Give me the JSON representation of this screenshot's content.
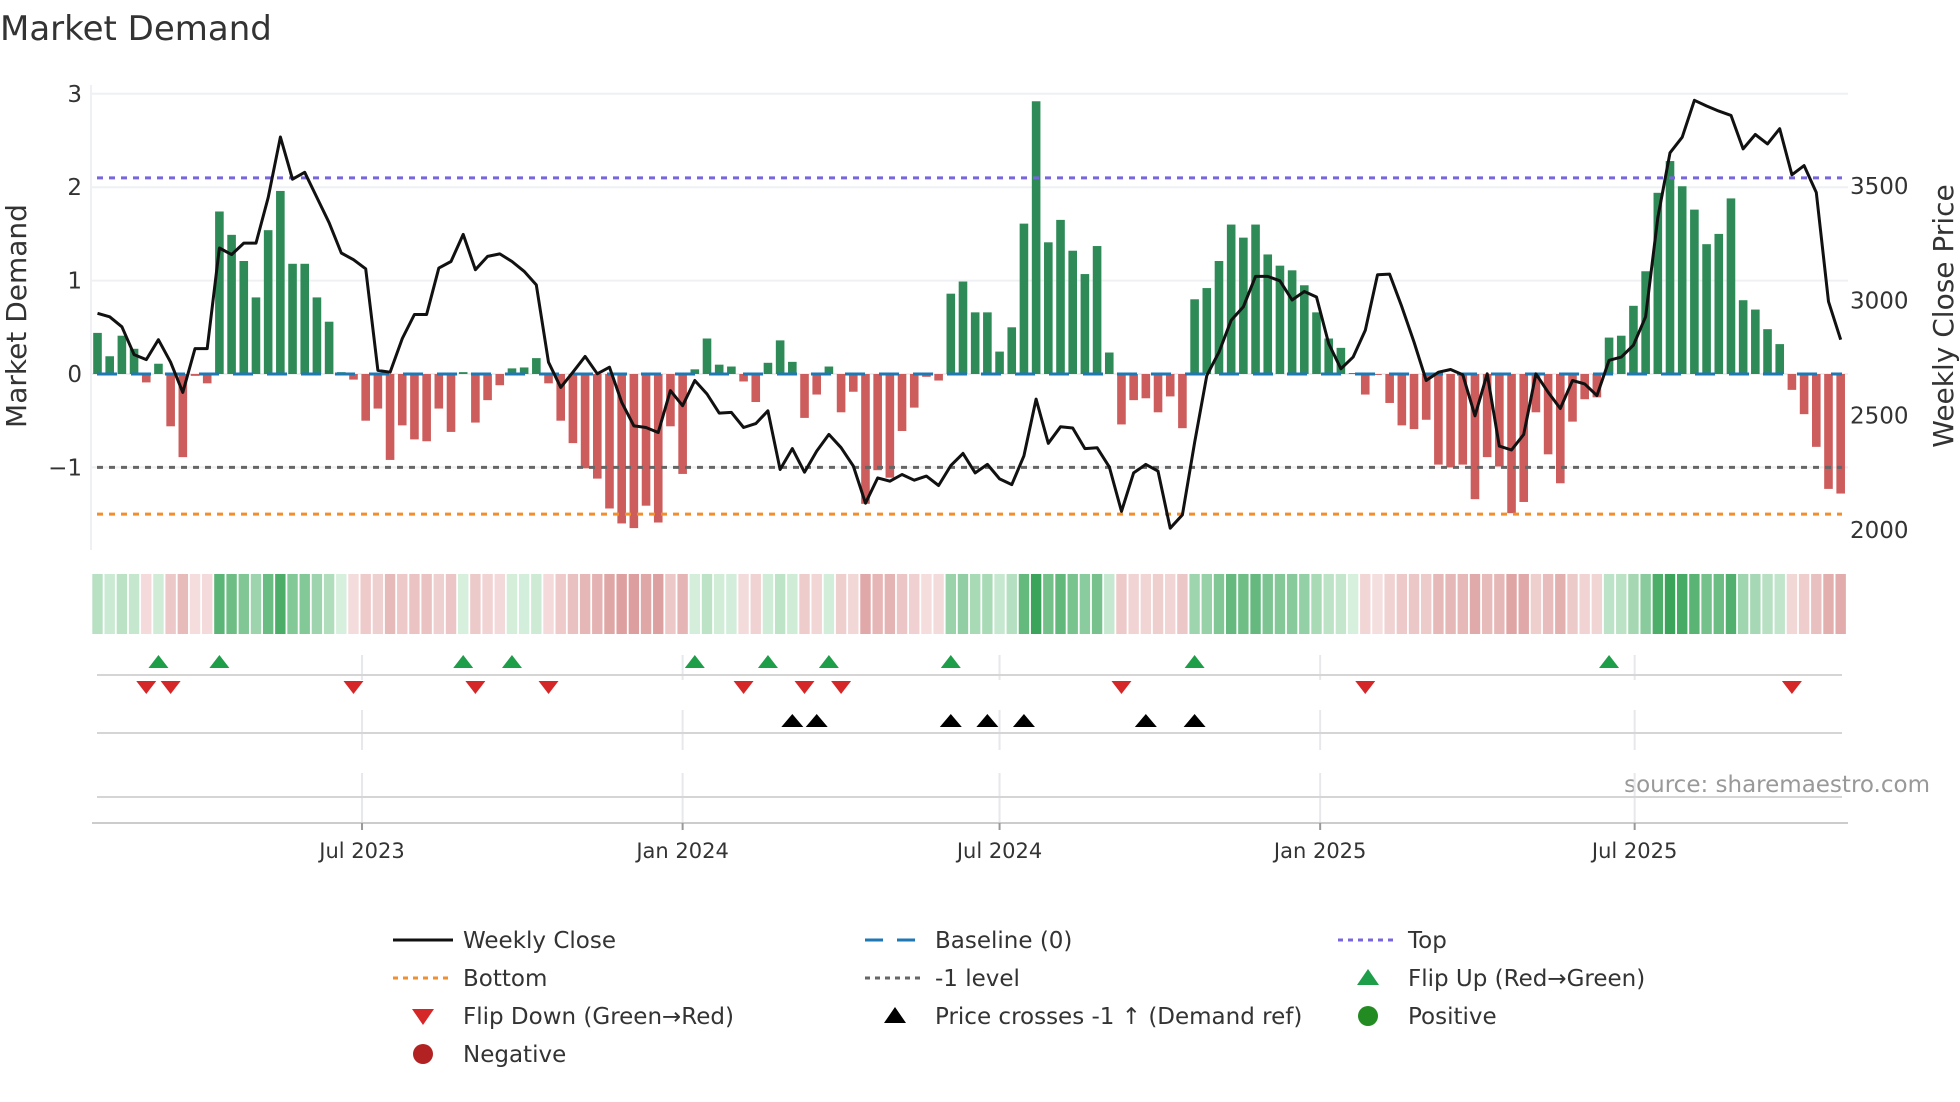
{
  "chart_data": {
    "type": "bar",
    "title": "Market Demand",
    "ylabel": "Market Demand",
    "y2label": "Weekly Close Price",
    "x_unit": "weeks",
    "x_start": "2023-01-30",
    "ylim": [
      -1.9,
      3.1
    ],
    "y2lim": [
      1950,
      3600
    ],
    "y_ticks": [
      {
        "value": 3,
        "label": "3"
      },
      {
        "value": 2,
        "label": "2"
      },
      {
        "value": 1,
        "label": "1"
      },
      {
        "value": 0,
        "label": "0"
      },
      {
        "value": -1,
        "label": "−1"
      }
    ],
    "y2_ticks": [
      {
        "value": 3500,
        "label": "3500"
      },
      {
        "value": 3000,
        "label": "3000"
      },
      {
        "value": 2500,
        "label": "2500"
      },
      {
        "value": 2000,
        "label": "2000"
      }
    ],
    "x_ticks": [
      {
        "week": 21.7,
        "label": "Jul 2023"
      },
      {
        "week": 48.0,
        "label": "Jan 2024"
      },
      {
        "week": 74.0,
        "label": "Jul 2024"
      },
      {
        "week": 100.3,
        "label": "Jan 2025"
      },
      {
        "week": 126.1,
        "label": "Jul 2025"
      }
    ],
    "levels": {
      "top": 2.1,
      "bottom": -1.5,
      "minus_one": -1,
      "baseline": 0
    },
    "demand": [
      0.44,
      0.19,
      0.41,
      0.27,
      -0.09,
      0.11,
      -0.56,
      -0.89,
      -0.02,
      -0.1,
      1.74,
      1.49,
      1.21,
      0.82,
      1.54,
      1.96,
      1.18,
      1.18,
      0.82,
      0.56,
      0.02,
      -0.06,
      -0.5,
      -0.37,
      -0.92,
      -0.55,
      -0.7,
      -0.72,
      -0.37,
      -0.62,
      0.02,
      -0.52,
      -0.28,
      -0.12,
      0.06,
      0.07,
      0.17,
      -0.1,
      -0.5,
      -0.74,
      -1.01,
      -1.12,
      -1.44,
      -1.6,
      -1.65,
      -1.41,
      -1.59,
      -0.56,
      -1.07,
      0.05,
      0.38,
      0.1,
      0.08,
      -0.08,
      -0.3,
      0.12,
      0.36,
      0.13,
      -0.47,
      -0.22,
      0.08,
      -0.41,
      -0.19,
      -1.39,
      -1.03,
      -1.11,
      -0.61,
      -0.36,
      -0.03,
      -0.07,
      0.86,
      0.99,
      0.66,
      0.66,
      0.24,
      0.5,
      1.61,
      2.92,
      1.41,
      1.65,
      1.32,
      1.07,
      1.37,
      0.23,
      -0.54,
      -0.28,
      -0.26,
      -0.41,
      -0.24,
      -0.58,
      0.8,
      0.92,
      1.21,
      1.6,
      1.46,
      1.6,
      1.28,
      1.16,
      1.11,
      0.95,
      0.66,
      0.38,
      0.28,
      0.01,
      -0.22,
      -0.01,
      -0.31,
      -0.55,
      -0.59,
      -0.49,
      -0.97,
      -1.0,
      -0.97,
      -1.34,
      -0.89,
      -0.99,
      -1.49,
      -1.37,
      -0.41,
      -0.86,
      -1.17,
      -0.51,
      -0.27,
      -0.25,
      0.39,
      0.41,
      0.73,
      1.1,
      1.94,
      2.28,
      2.01,
      1.76,
      1.39,
      1.5,
      1.88,
      0.79,
      0.69,
      0.48,
      0.32,
      -0.17,
      -0.43,
      -0.78,
      -1.23,
      -1.28
    ],
    "weekly_close": [
      2945,
      2930,
      2886,
      2765,
      2743,
      2830,
      2732,
      2600,
      2791,
      2791,
      3230,
      3201,
      3251,
      3251,
      3450,
      3714,
      3530,
      3560,
      3450,
      3340,
      3208,
      3179,
      3139,
      2696,
      2688,
      2835,
      2940,
      2940,
      3142,
      3171,
      3289,
      3135,
      3193,
      3204,
      3171,
      3128,
      3069,
      2732,
      2622,
      2688,
      2757,
      2681,
      2710,
      2557,
      2454,
      2447,
      2425,
      2608,
      2542,
      2652,
      2593,
      2510,
      2513,
      2447,
      2464,
      2520,
      2264,
      2355,
      2252,
      2344,
      2417,
      2359,
      2279,
      2117,
      2227,
      2213,
      2242,
      2217,
      2235,
      2194,
      2281,
      2334,
      2249,
      2286,
      2223,
      2198,
      2323,
      2571,
      2378,
      2450,
      2445,
      2355,
      2359,
      2275,
      2081,
      2249,
      2286,
      2257,
      2008,
      2066,
      2381,
      2674,
      2776,
      2915,
      2974,
      3106,
      3106,
      3087,
      3003,
      3040,
      3016,
      2813,
      2703,
      2754,
      2871,
      3113,
      3116,
      2974,
      2820,
      2652,
      2688,
      2700,
      2677,
      2498,
      2681,
      2366,
      2349,
      2417,
      2681,
      2601,
      2530,
      2652,
      2637,
      2586,
      2740,
      2754,
      2806,
      2930,
      3362,
      3645,
      3713,
      3874,
      3849,
      3827,
      3808,
      3662,
      3725,
      3684,
      3750,
      3549,
      3589,
      3472,
      2996,
      2830
    ],
    "flip_up_weeks": [
      5,
      10,
      30,
      34,
      49,
      55,
      60,
      70,
      90,
      124
    ],
    "flip_down_weeks": [
      4,
      6,
      21,
      31,
      37,
      53,
      58,
      61,
      84,
      104,
      139
    ],
    "price_cross_weeks": [
      57,
      59,
      70,
      73,
      76,
      86,
      90
    ],
    "legend_placement": "bottom-center",
    "legend": [
      {
        "label": "Weekly Close",
        "kind": "line",
        "color": "#111111"
      },
      {
        "label": "Baseline (0)",
        "kind": "dash",
        "color": "#1f77b4"
      },
      {
        "label": "Top",
        "kind": "dot",
        "color": "#7766dd"
      },
      {
        "label": "Bottom",
        "kind": "dot",
        "color": "#f28e2b"
      },
      {
        "label": "-1 level",
        "kind": "dot",
        "color": "#666666"
      },
      {
        "label": "Flip Up (Red→Green)",
        "kind": "tri-up",
        "color": "#1f9e4a"
      },
      {
        "label": "Flip Down (Green→Red)",
        "kind": "tri-down",
        "color": "#d62728"
      },
      {
        "label": "Price crosses -1 ↑ (Demand ref)",
        "kind": "tri-up",
        "color": "#000000"
      },
      {
        "label": "Positive",
        "kind": "circle",
        "color": "#228b22"
      },
      {
        "label": "Negative",
        "kind": "circle",
        "color": "#b22222"
      }
    ],
    "source": "source: sharemaestro.com",
    "colors": {
      "positive_bar": "#2e8b57",
      "negative_bar": "#cd5c5c",
      "top": "#7766dd",
      "bottom": "#f28e2b",
      "minus_one": "#666666",
      "baseline": "#1f77b4"
    }
  }
}
